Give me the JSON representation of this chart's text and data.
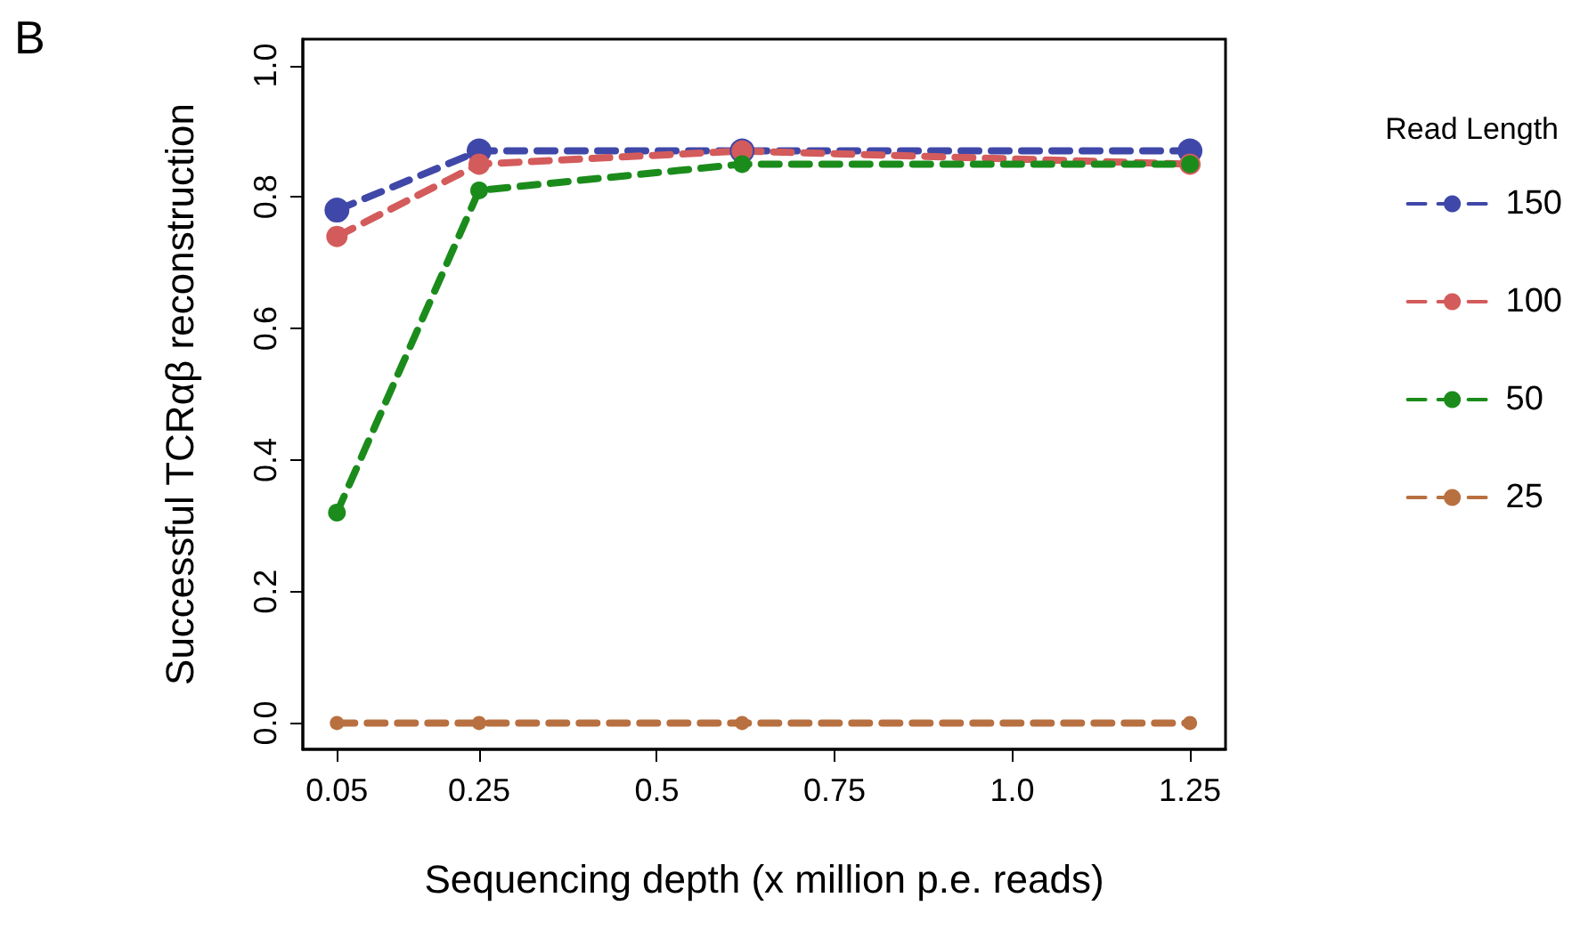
{
  "chart_data": {
    "type": "line",
    "xlabel": "Sequencing depth (x million p.e. reads)",
    "ylabel": "Successful TCRαβ reconstruction",
    "legend_title": "Read Length",
    "annotations": [
      "B"
    ],
    "x": [
      0.05,
      0.25,
      0.62,
      1.25
    ],
    "series": [
      {
        "name": "150",
        "color": "#3f48a8",
        "values": [
          0.78,
          0.87,
          0.87,
          0.87
        ]
      },
      {
        "name": "100",
        "color": "#d45b5b",
        "values": [
          0.74,
          0.85,
          0.87,
          0.85
        ]
      },
      {
        "name": "50",
        "color": "#1b8c1b",
        "values": [
          0.32,
          0.81,
          0.85,
          0.85
        ]
      },
      {
        "name": "25",
        "color": "#b87040",
        "values": [
          0,
          0,
          0,
          0
        ]
      }
    ],
    "xlim": [
      0.002,
      1.3
    ],
    "xticks": [
      0.05,
      0.25,
      0.5,
      0.75,
      {
        "value": 1,
        "label": "1.0"
      },
      1.25
    ],
    "ylim": [
      -0.04,
      1.04
    ],
    "yticks": [
      {
        "value": 0,
        "label": "0.0"
      },
      0.2,
      0.4,
      0.6,
      0.8,
      {
        "value": 1,
        "label": "1.0"
      }
    ],
    "grid": false,
    "legend": "right",
    "marker": "circle",
    "line_style": "dashed"
  }
}
